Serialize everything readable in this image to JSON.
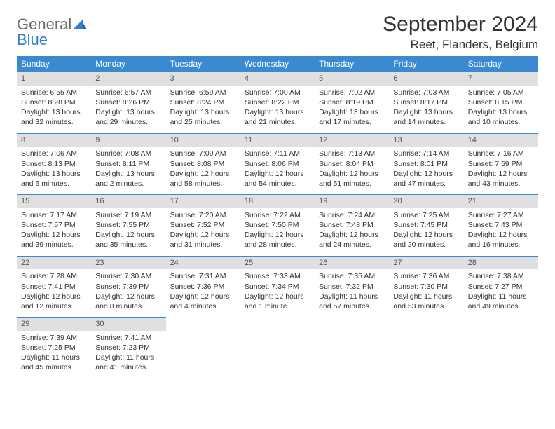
{
  "logo": {
    "word1": "General",
    "word2": "Blue"
  },
  "title": "September 2024",
  "location": "Reet, Flanders, Belgium",
  "colors": {
    "header_bg": "#3b89d0",
    "header_fg": "#ffffff",
    "daynum_bg": "#e0e0e0",
    "rule": "#3b89d0",
    "logo_blue": "#2f7fcf",
    "logo_gray": "#6b6b6b"
  },
  "typography": {
    "title_fontsize": 30,
    "location_fontsize": 17,
    "weekday_fontsize": 12,
    "cell_fontsize": 10.5
  },
  "weekdays": [
    "Sunday",
    "Monday",
    "Tuesday",
    "Wednesday",
    "Thursday",
    "Friday",
    "Saturday"
  ],
  "weeks": [
    [
      {
        "n": "1",
        "sr": "Sunrise: 6:55 AM",
        "ss": "Sunset: 8:28 PM",
        "dl1": "Daylight: 13 hours",
        "dl2": "and 32 minutes."
      },
      {
        "n": "2",
        "sr": "Sunrise: 6:57 AM",
        "ss": "Sunset: 8:26 PM",
        "dl1": "Daylight: 13 hours",
        "dl2": "and 29 minutes."
      },
      {
        "n": "3",
        "sr": "Sunrise: 6:59 AM",
        "ss": "Sunset: 8:24 PM",
        "dl1": "Daylight: 13 hours",
        "dl2": "and 25 minutes."
      },
      {
        "n": "4",
        "sr": "Sunrise: 7:00 AM",
        "ss": "Sunset: 8:22 PM",
        "dl1": "Daylight: 13 hours",
        "dl2": "and 21 minutes."
      },
      {
        "n": "5",
        "sr": "Sunrise: 7:02 AM",
        "ss": "Sunset: 8:19 PM",
        "dl1": "Daylight: 13 hours",
        "dl2": "and 17 minutes."
      },
      {
        "n": "6",
        "sr": "Sunrise: 7:03 AM",
        "ss": "Sunset: 8:17 PM",
        "dl1": "Daylight: 13 hours",
        "dl2": "and 14 minutes."
      },
      {
        "n": "7",
        "sr": "Sunrise: 7:05 AM",
        "ss": "Sunset: 8:15 PM",
        "dl1": "Daylight: 13 hours",
        "dl2": "and 10 minutes."
      }
    ],
    [
      {
        "n": "8",
        "sr": "Sunrise: 7:06 AM",
        "ss": "Sunset: 8:13 PM",
        "dl1": "Daylight: 13 hours",
        "dl2": "and 6 minutes."
      },
      {
        "n": "9",
        "sr": "Sunrise: 7:08 AM",
        "ss": "Sunset: 8:11 PM",
        "dl1": "Daylight: 13 hours",
        "dl2": "and 2 minutes."
      },
      {
        "n": "10",
        "sr": "Sunrise: 7:09 AM",
        "ss": "Sunset: 8:08 PM",
        "dl1": "Daylight: 12 hours",
        "dl2": "and 58 minutes."
      },
      {
        "n": "11",
        "sr": "Sunrise: 7:11 AM",
        "ss": "Sunset: 8:06 PM",
        "dl1": "Daylight: 12 hours",
        "dl2": "and 54 minutes."
      },
      {
        "n": "12",
        "sr": "Sunrise: 7:13 AM",
        "ss": "Sunset: 8:04 PM",
        "dl1": "Daylight: 12 hours",
        "dl2": "and 51 minutes."
      },
      {
        "n": "13",
        "sr": "Sunrise: 7:14 AM",
        "ss": "Sunset: 8:01 PM",
        "dl1": "Daylight: 12 hours",
        "dl2": "and 47 minutes."
      },
      {
        "n": "14",
        "sr": "Sunrise: 7:16 AM",
        "ss": "Sunset: 7:59 PM",
        "dl1": "Daylight: 12 hours",
        "dl2": "and 43 minutes."
      }
    ],
    [
      {
        "n": "15",
        "sr": "Sunrise: 7:17 AM",
        "ss": "Sunset: 7:57 PM",
        "dl1": "Daylight: 12 hours",
        "dl2": "and 39 minutes."
      },
      {
        "n": "16",
        "sr": "Sunrise: 7:19 AM",
        "ss": "Sunset: 7:55 PM",
        "dl1": "Daylight: 12 hours",
        "dl2": "and 35 minutes."
      },
      {
        "n": "17",
        "sr": "Sunrise: 7:20 AM",
        "ss": "Sunset: 7:52 PM",
        "dl1": "Daylight: 12 hours",
        "dl2": "and 31 minutes."
      },
      {
        "n": "18",
        "sr": "Sunrise: 7:22 AM",
        "ss": "Sunset: 7:50 PM",
        "dl1": "Daylight: 12 hours",
        "dl2": "and 28 minutes."
      },
      {
        "n": "19",
        "sr": "Sunrise: 7:24 AM",
        "ss": "Sunset: 7:48 PM",
        "dl1": "Daylight: 12 hours",
        "dl2": "and 24 minutes."
      },
      {
        "n": "20",
        "sr": "Sunrise: 7:25 AM",
        "ss": "Sunset: 7:45 PM",
        "dl1": "Daylight: 12 hours",
        "dl2": "and 20 minutes."
      },
      {
        "n": "21",
        "sr": "Sunrise: 7:27 AM",
        "ss": "Sunset: 7:43 PM",
        "dl1": "Daylight: 12 hours",
        "dl2": "and 16 minutes."
      }
    ],
    [
      {
        "n": "22",
        "sr": "Sunrise: 7:28 AM",
        "ss": "Sunset: 7:41 PM",
        "dl1": "Daylight: 12 hours",
        "dl2": "and 12 minutes."
      },
      {
        "n": "23",
        "sr": "Sunrise: 7:30 AM",
        "ss": "Sunset: 7:39 PM",
        "dl1": "Daylight: 12 hours",
        "dl2": "and 8 minutes."
      },
      {
        "n": "24",
        "sr": "Sunrise: 7:31 AM",
        "ss": "Sunset: 7:36 PM",
        "dl1": "Daylight: 12 hours",
        "dl2": "and 4 minutes."
      },
      {
        "n": "25",
        "sr": "Sunrise: 7:33 AM",
        "ss": "Sunset: 7:34 PM",
        "dl1": "Daylight: 12 hours",
        "dl2": "and 1 minute."
      },
      {
        "n": "26",
        "sr": "Sunrise: 7:35 AM",
        "ss": "Sunset: 7:32 PM",
        "dl1": "Daylight: 11 hours",
        "dl2": "and 57 minutes."
      },
      {
        "n": "27",
        "sr": "Sunrise: 7:36 AM",
        "ss": "Sunset: 7:30 PM",
        "dl1": "Daylight: 11 hours",
        "dl2": "and 53 minutes."
      },
      {
        "n": "28",
        "sr": "Sunrise: 7:38 AM",
        "ss": "Sunset: 7:27 PM",
        "dl1": "Daylight: 11 hours",
        "dl2": "and 49 minutes."
      }
    ],
    [
      {
        "n": "29",
        "sr": "Sunrise: 7:39 AM",
        "ss": "Sunset: 7:25 PM",
        "dl1": "Daylight: 11 hours",
        "dl2": "and 45 minutes."
      },
      {
        "n": "30",
        "sr": "Sunrise: 7:41 AM",
        "ss": "Sunset: 7:23 PM",
        "dl1": "Daylight: 11 hours",
        "dl2": "and 41 minutes."
      },
      null,
      null,
      null,
      null,
      null
    ]
  ]
}
